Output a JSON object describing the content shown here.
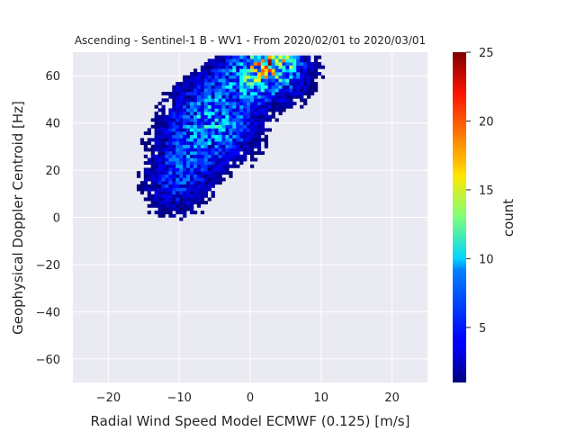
{
  "chart_data": {
    "type": "heatmap",
    "title": "Ascending - Sentinel-1 B - WV1 - From 2020/02/01 to 2020/03/01",
    "xlabel": "Radial Wind Speed Model ECMWF (0.125) [m/s]",
    "ylabel": "Geophysical Doppler Centroid [Hz]",
    "xlim": [
      -25,
      25
    ],
    "ylim": [
      -70,
      70
    ],
    "x_ticks": [
      -20,
      -10,
      0,
      10,
      20
    ],
    "y_ticks": [
      -60,
      -40,
      -20,
      0,
      20,
      40,
      60
    ],
    "grid": true,
    "colorbar": {
      "label": "count",
      "colormap": "jet",
      "range": [
        1,
        25
      ],
      "ticks": [
        5,
        10,
        15,
        20,
        25
      ]
    },
    "density_components": [
      {
        "center": [
          -9,
          27
        ],
        "sigma": [
          3.2,
          11
        ],
        "weight": 4.2
      },
      {
        "center": [
          -4,
          40
        ],
        "sigma": [
          3.6,
          10
        ],
        "weight": 5.6
      },
      {
        "center": [
          1.5,
          60
        ],
        "sigma": [
          3.8,
          7
        ],
        "weight": 9.5
      },
      {
        "center": [
          3.5,
          66
        ],
        "sigma": [
          2.5,
          4
        ],
        "weight": 9.0
      },
      {
        "center": [
          -11,
          12
        ],
        "sigma": [
          2.8,
          8
        ],
        "weight": 2.6
      },
      {
        "center": [
          -7,
          50
        ],
        "sigma": [
          3.0,
          9
        ],
        "weight": 2.2
      }
    ],
    "support_band": {
      "slope": 2.1,
      "intercept": 47,
      "half_width": 32
    },
    "bin_size": [
      0.5,
      1.4
    ],
    "min_count": 1
  }
}
